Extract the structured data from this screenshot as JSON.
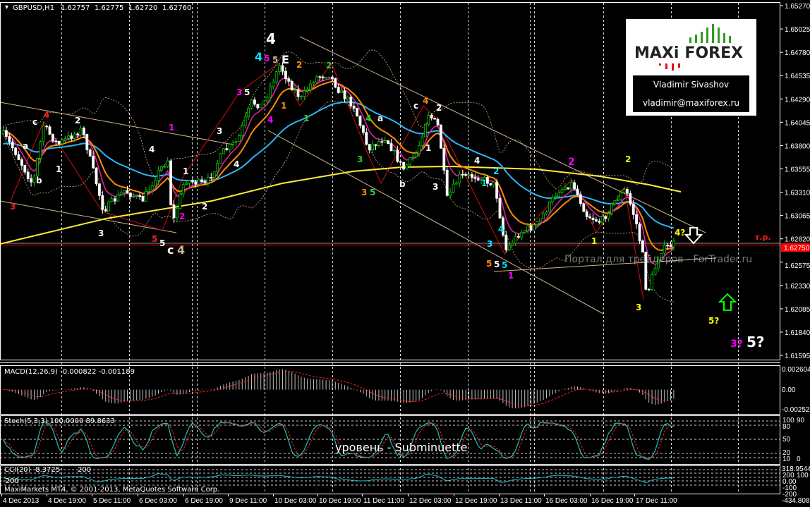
{
  "header": {
    "symbol": "GBPUSD,H1",
    "open": "1.62757",
    "high": "1.62775",
    "low": "1.62720",
    "close": "1.62760"
  },
  "price_axis": [
    "1.65270",
    "1.65025",
    "1.64780",
    "1.64535",
    "1.64290",
    "1.64045",
    "1.63800",
    "1.63555",
    "1.63310",
    "1.63065",
    "1.62820",
    "1.62575",
    "1.62330",
    "1.62085",
    "1.61840",
    "1.61595"
  ],
  "current_price": "1.62750",
  "target_label": "т.р.",
  "time_axis": [
    "4 Dec 2013",
    "4 Dec 19:00",
    "5 Dec 11:00",
    "6 Dec 03:00",
    "6 Dec 19:00",
    "9 Dec 11:00",
    "10 Dec 03:00",
    "10 Dec 19:00",
    "11 Dec 11:00",
    "12 Dec 03:00",
    "12 Dec 19:00",
    "13 Dec 11:00",
    "16 Dec 03:00",
    "16 Dec 19:00",
    "17 Dec 11:00"
  ],
  "logo": {
    "brand_left": "MAXi",
    "brand_right": "FOREX",
    "name": "Vladimir Sivashov",
    "email": "vladimir@maxiforex.ru"
  },
  "watermark": "Портал для трейдеров - ForTrader.ru",
  "wave_labels": [
    {
      "text": "4",
      "color": "#ff2020"
    },
    {
      "text": "c",
      "color": "#ffffff"
    },
    {
      "text": "a",
      "color": "#ffffff"
    },
    {
      "text": "2",
      "color": "#ffffff"
    },
    {
      "text": "1",
      "color": "#ffffff"
    },
    {
      "text": "b",
      "color": "#ffffff"
    },
    {
      "text": "3",
      "color": "#ff2020"
    },
    {
      "text": "3",
      "color": "#ffffff"
    },
    {
      "text": "4",
      "color": "#ffffff"
    },
    {
      "text": "1",
      "color": "#ff00ff"
    },
    {
      "text": "1",
      "color": "#ffffff"
    },
    {
      "text": "2",
      "color": "#ff00ff"
    },
    {
      "text": "2",
      "color": "#ffffff"
    },
    {
      "text": "5",
      "color": "#ff2020"
    },
    {
      "text": "5",
      "color": "#ffffff"
    },
    {
      "text": "c",
      "color": "#ffffff"
    },
    {
      "text": "4",
      "color": "#d2b48c"
    },
    {
      "text": "3",
      "color": "#ffffff"
    },
    {
      "text": "4",
      "color": "#ffffff"
    },
    {
      "text": "3",
      "color": "#ff00ff"
    },
    {
      "text": "5",
      "color": "#ffffff"
    },
    {
      "text": "4",
      "color": "#ff00ff"
    },
    {
      "text": "4",
      "color": "#00e5ff"
    },
    {
      "text": "5",
      "color": "#ff00ff"
    },
    {
      "text": "5",
      "color": "#d2b48c"
    },
    {
      "text": "E",
      "color": "#ffffff"
    },
    {
      "text": "4",
      "color": "#ffffff"
    },
    {
      "text": "1",
      "color": "#ff8c00"
    },
    {
      "text": "2",
      "color": "#ff8c00"
    },
    {
      "text": "2",
      "color": "#32cd32"
    },
    {
      "text": "1",
      "color": "#32cd32"
    },
    {
      "text": "4",
      "color": "#32cd32"
    },
    {
      "text": "a",
      "color": "#ffffff"
    },
    {
      "text": "3",
      "color": "#32cd32"
    },
    {
      "text": "3",
      "color": "#ff8c00"
    },
    {
      "text": "5",
      "color": "#32cd32"
    },
    {
      "text": "b",
      "color": "#ffffff"
    },
    {
      "text": "c",
      "color": "#ffffff"
    },
    {
      "text": "4",
      "color": "#ff8c00"
    },
    {
      "text": "2",
      "color": "#ffffff"
    },
    {
      "text": "1",
      "color": "#ffffff"
    },
    {
      "text": "3",
      "color": "#ffffff"
    },
    {
      "text": "4",
      "color": "#ffffff"
    },
    {
      "text": "2",
      "color": "#00e5ff"
    },
    {
      "text": "1",
      "color": "#00e5ff"
    },
    {
      "text": "3",
      "color": "#00e5ff"
    },
    {
      "text": "4",
      "color": "#00e5ff"
    },
    {
      "text": "5",
      "color": "#ff8c00"
    },
    {
      "text": "5",
      "color": "#ffffff"
    },
    {
      "text": "5",
      "color": "#00e5ff"
    },
    {
      "text": "1",
      "color": "#ff00ff"
    },
    {
      "text": "2",
      "color": "#ff00ff"
    },
    {
      "text": "2",
      "color": "#ffff00"
    },
    {
      "text": "1",
      "color": "#ffff00"
    },
    {
      "text": "4?",
      "color": "#ffff00"
    },
    {
      "text": "3",
      "color": "#ffff00"
    },
    {
      "text": "5?",
      "color": "#ffff00"
    },
    {
      "text": "3?",
      "color": "#ff00ff"
    },
    {
      "text": "5?",
      "color": "#ffffff"
    }
  ],
  "indicators": {
    "macd": {
      "title": "MACD(12,26,9) -0.000822 -0.001189",
      "axis": [
        "0.002604",
        "0.00",
        "-0.002521"
      ]
    },
    "stoch": {
      "title": "Stoch(5,3,3) 100.0000 89.8633",
      "axis": [
        "100",
        "90",
        "80",
        "50",
        "20",
        "10",
        "0"
      ],
      "note": "уровень - Subminuette"
    },
    "cci": {
      "title": "CCI(20) -8.3725",
      "axis": [
        "318.9544",
        "200",
        "100",
        "0.00",
        "-100",
        "-200",
        "-434.8083"
      ],
      "left_levels": [
        "200",
        "-200"
      ]
    }
  },
  "footer": "MaxiMarkets MT4, © 2001-2013, MetaQuotes Software Corp.",
  "colors": {
    "background": "#000000",
    "bull_candle": "#00c800",
    "bear_candle": "#ffffff",
    "ma_fast": "#e020a0",
    "ma_mid": "#ff8c00",
    "ma_slow": "#29b6f6",
    "ma_long": "#ffeb3b",
    "price_line": "#ff0000",
    "channel": "#d2b48c",
    "stoch_main": "#20c0c0",
    "signal": "#ff2020"
  }
}
